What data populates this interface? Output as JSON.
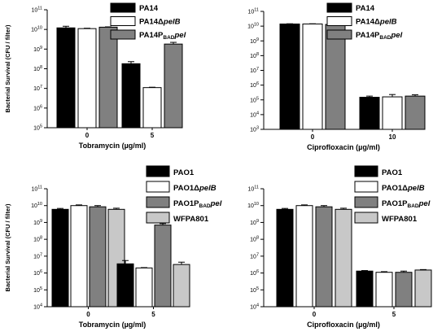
{
  "colors": {
    "black": "#000000",
    "white": "#ffffff",
    "dark_gray": "#808080",
    "light_gray": "#c8c8c8"
  },
  "chart_data": [
    {
      "type": "bar",
      "log_scale": true,
      "ylim": [
        100000,
        100000000000
      ],
      "yticks": [
        "10^5",
        "10^6",
        "10^7",
        "10^8",
        "10^9",
        "10^10",
        "10^11"
      ],
      "ylabel": "Bacterial Survival (CFU / filter)",
      "xlabel": "Tobramycin (µg/ml)",
      "categories": [
        "0",
        "5"
      ],
      "legend_position": "top-right",
      "series": [
        {
          "name": "PA14",
          "name_sub": "",
          "name_tail": "",
          "color": "black",
          "values": [
            12000000000,
            180000000
          ],
          "errors": [
            2500000000,
            50000000
          ]
        },
        {
          "name": "PA14Δ",
          "name_sub": "",
          "name_tail": "pelB",
          "color": "white",
          "values": [
            11000000000,
            11000000
          ],
          "errors": [
            500000000,
            500000
          ]
        },
        {
          "name": "PA14P",
          "name_sub": "BAD",
          "name_tail": "pel",
          "color": "dark_gray",
          "values": [
            13000000000,
            1800000000
          ],
          "errors": [
            500000000,
            400000000
          ]
        }
      ]
    },
    {
      "type": "bar",
      "log_scale": true,
      "ylim": [
        1000,
        100000000000
      ],
      "yticks": [
        "10^3",
        "10^4",
        "10^5",
        "10^6",
        "10^7",
        "10^8",
        "10^9",
        "10^10",
        "10^11"
      ],
      "ylabel": "",
      "xlabel": "Ciprofloxacin (µg/ml)",
      "categories": [
        "0",
        "10"
      ],
      "legend_position": "top-right",
      "series": [
        {
          "name": "PA14",
          "name_sub": "",
          "name_tail": "",
          "color": "black",
          "values": [
            14000000000,
            150000
          ],
          "errors": [
            500000000,
            30000
          ]
        },
        {
          "name": "PA14Δ",
          "name_sub": "",
          "name_tail": "pelB",
          "color": "white",
          "values": [
            14000000000,
            160000
          ],
          "errors": [
            500000000,
            70000
          ]
        },
        {
          "name": "PA14P",
          "name_sub": "BAD",
          "name_tail": "pel",
          "color": "dark_gray",
          "values": [
            13000000000,
            180000
          ],
          "errors": [
            500000000,
            40000
          ]
        }
      ]
    },
    {
      "type": "bar",
      "log_scale": true,
      "ylim": [
        10000,
        100000000000
      ],
      "yticks": [
        "10^4",
        "10^5",
        "10^6",
        "10^7",
        "10^8",
        "10^9",
        "10^10",
        "10^11"
      ],
      "ylabel": "Bacterial Survival (CFU / filter)",
      "xlabel": "Tobramycin (µg/ml)",
      "categories": [
        "0",
        "5"
      ],
      "legend_position": "top-right",
      "series": [
        {
          "name": "PAO1",
          "name_sub": "",
          "name_tail": "",
          "color": "black",
          "values": [
            6000000000,
            3500000
          ],
          "errors": [
            800000000,
            2000000
          ]
        },
        {
          "name": "PAO1Δ",
          "name_sub": "",
          "name_tail": "pelB",
          "color": "white",
          "values": [
            10000000000,
            2000000
          ],
          "errors": [
            1000000000,
            100000
          ]
        },
        {
          "name": "PAO1P",
          "name_sub": "BAD",
          "name_tail": "pel",
          "color": "dark_gray",
          "values": [
            8500000000,
            700000000
          ],
          "errors": [
            1500000000,
            150000000
          ]
        },
        {
          "name": "WFPA801",
          "name_sub": "",
          "name_tail": "",
          "color": "light_gray",
          "values": [
            6000000000,
            3200000
          ],
          "errors": [
            1000000000,
            1200000
          ]
        }
      ]
    },
    {
      "type": "bar",
      "log_scale": true,
      "ylim": [
        10000,
        100000000000
      ],
      "yticks": [
        "10^4",
        "10^5",
        "10^6",
        "10^7",
        "10^8",
        "10^9",
        "10^10",
        "10^11"
      ],
      "ylabel": "",
      "xlabel": "Ciprofloxacin (µg/ml)",
      "categories": [
        "0",
        "5"
      ],
      "legend_position": "top-right",
      "series": [
        {
          "name": "PAO1",
          "name_sub": "",
          "name_tail": "",
          "color": "black",
          "values": [
            6000000000,
            1300000
          ],
          "errors": [
            800000000,
            100000
          ]
        },
        {
          "name": "PAO1Δ",
          "name_sub": "",
          "name_tail": "pelB",
          "color": "white",
          "values": [
            10000000000,
            1100000
          ],
          "errors": [
            1000000000,
            100000
          ]
        },
        {
          "name": "PAO1P",
          "name_sub": "BAD",
          "name_tail": "pel",
          "color": "dark_gray",
          "values": [
            8500000000,
            1100000
          ],
          "errors": [
            1500000000,
            200000
          ]
        },
        {
          "name": "WFPA801",
          "name_sub": "",
          "name_tail": "",
          "color": "light_gray",
          "values": [
            6000000000,
            1500000
          ],
          "errors": [
            1000000000,
            100000
          ]
        }
      ]
    }
  ]
}
